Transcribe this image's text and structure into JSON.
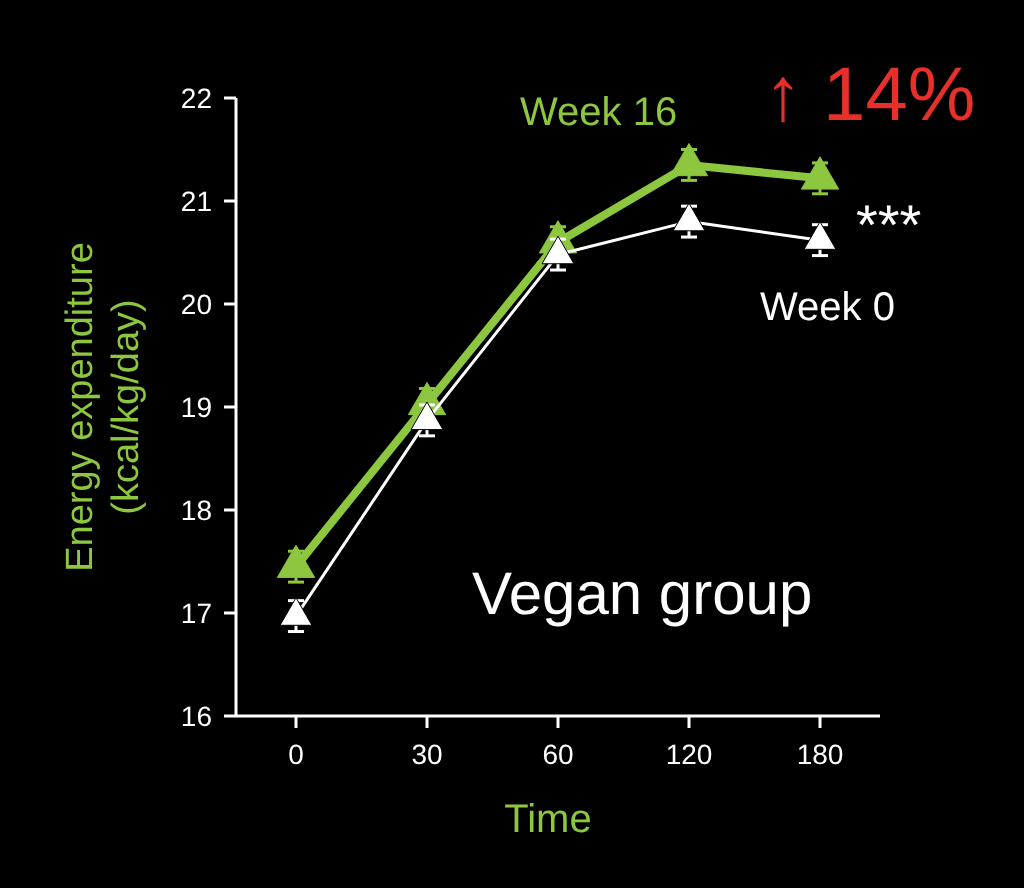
{
  "chart_data": {
    "type": "line",
    "title": "Vegan group",
    "xlabel": "Time",
    "ylabel": "Energy expenditure\n(kcal/kg/day)",
    "categories": [
      "0",
      "30",
      "60",
      "120",
      "180"
    ],
    "ylim": [
      16,
      22
    ],
    "yticks": [
      16,
      17,
      18,
      19,
      20,
      21,
      22
    ],
    "grid": false,
    "marker": "triangle",
    "annotations": [
      "↑ 14%",
      "***"
    ],
    "series": [
      {
        "name": "Week 16",
        "color": "#8dc63f",
        "values": [
          17.45,
          19.03,
          20.6,
          21.35,
          21.22
        ],
        "errors": [
          0.15,
          0.15,
          0.15,
          0.15,
          0.15
        ]
      },
      {
        "name": "Week 0",
        "color": "#ffffff",
        "values": [
          16.97,
          18.87,
          20.48,
          20.8,
          20.62
        ],
        "errors": [
          0.15,
          0.15,
          0.15,
          0.15,
          0.15
        ]
      }
    ]
  }
}
